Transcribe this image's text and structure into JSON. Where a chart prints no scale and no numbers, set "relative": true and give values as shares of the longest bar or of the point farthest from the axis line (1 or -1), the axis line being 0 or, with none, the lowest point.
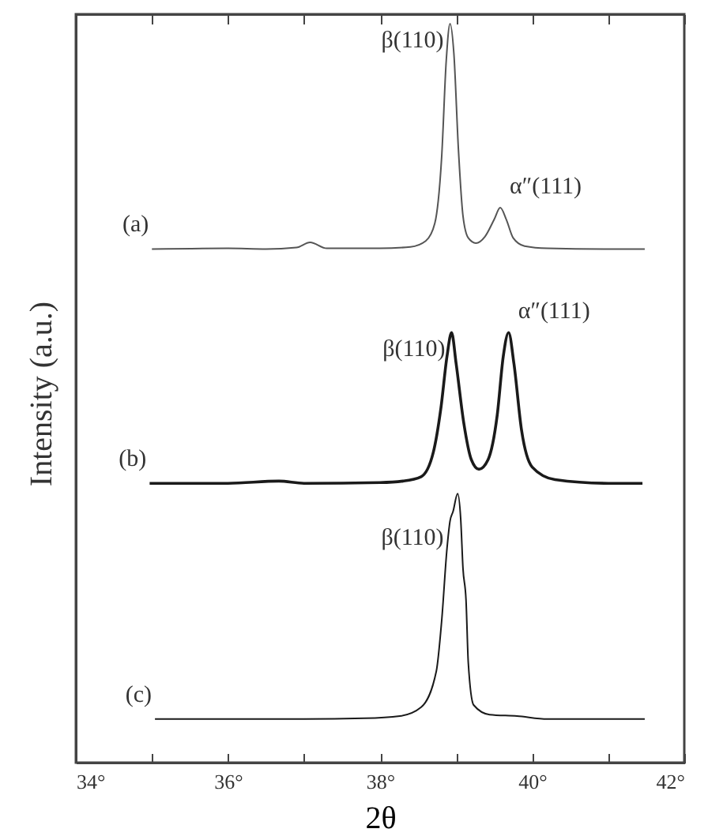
{
  "chart_data": {
    "type": "line",
    "relative": true,
    "xlabel": "2θ",
    "ylabel": "Intensity (a.u.)",
    "xlim": [
      34,
      42
    ],
    "xticks": [
      {
        "value": 34,
        "label": "34°"
      },
      {
        "value": 35,
        "label": null
      },
      {
        "value": 36,
        "label": "36°"
      },
      {
        "value": 37,
        "label": null
      },
      {
        "value": 38,
        "label": "38°"
      },
      {
        "value": 39,
        "label": null
      },
      {
        "value": 40,
        "label": "40°"
      },
      {
        "value": 41,
        "label": null
      },
      {
        "value": 42,
        "label": "42°"
      }
    ],
    "tick_labels": "x",
    "grid": false,
    "marker": "none",
    "line_style": "solid",
    "series": [
      {
        "name": "(a)",
        "color": "#555555",
        "x": [
          35.0,
          36.0,
          36.5,
          36.9,
          37.08,
          37.3,
          38.0,
          38.4,
          38.6,
          38.72,
          38.81,
          38.87,
          38.92,
          38.97,
          39.03,
          39.09,
          39.16,
          39.26,
          39.38,
          39.5,
          39.58,
          39.66,
          39.75,
          39.9,
          40.2,
          41.0,
          41.48
        ],
        "values": [
          0.695,
          0.696,
          0.695,
          0.697,
          0.704,
          0.696,
          0.696,
          0.698,
          0.706,
          0.73,
          0.82,
          0.95,
          1.0,
          0.96,
          0.83,
          0.74,
          0.71,
          0.703,
          0.712,
          0.735,
          0.751,
          0.735,
          0.71,
          0.699,
          0.696,
          0.695,
          0.695
        ]
      },
      {
        "name": "(b)",
        "color": "#1a1a1a",
        "x": [
          34.97,
          36.0,
          36.67,
          37.0,
          38.0,
          38.3,
          38.54,
          38.7,
          38.8,
          38.88,
          38.94,
          39.0,
          39.1,
          39.2,
          39.3,
          39.42,
          39.54,
          39.62,
          39.69,
          39.76,
          39.86,
          40.0,
          40.3,
          41.0,
          41.45
        ],
        "values": [
          0.378,
          0.378,
          0.381,
          0.378,
          0.379,
          0.381,
          0.387,
          0.42,
          0.48,
          0.55,
          0.582,
          0.54,
          0.46,
          0.41,
          0.397,
          0.41,
          0.47,
          0.55,
          0.582,
          0.54,
          0.45,
          0.4,
          0.383,
          0.378,
          0.378
        ]
      },
      {
        "name": "(c)",
        "color": "#1a1a1a",
        "x": [
          35.04,
          36.0,
          37.0,
          37.8,
          38.26,
          38.54,
          38.74,
          38.81,
          38.88,
          38.92,
          38.96,
          39.02,
          39.06,
          39.09,
          39.13,
          39.16,
          39.23,
          39.44,
          39.8,
          40.2,
          41.0,
          41.48
        ],
        "values": [
          0.059,
          0.059,
          0.059,
          0.06,
          0.063,
          0.075,
          0.124,
          0.192,
          0.29,
          0.327,
          0.34,
          0.364,
          0.33,
          0.263,
          0.22,
          0.135,
          0.078,
          0.065,
          0.063,
          0.059,
          0.059,
          0.059
        ]
      }
    ],
    "annotations": [
      {
        "text": "β(110)",
        "x": 38.92,
        "y": 1.0
      },
      {
        "text": "α″(111)",
        "x": 39.58,
        "y": 0.751
      },
      {
        "text": "β(110)",
        "x": 38.94,
        "y": 0.582
      },
      {
        "text": "α″(111)",
        "x": 39.69,
        "y": 0.582
      },
      {
        "text": "β(110)",
        "x": 38.92,
        "y": 0.327
      }
    ]
  }
}
